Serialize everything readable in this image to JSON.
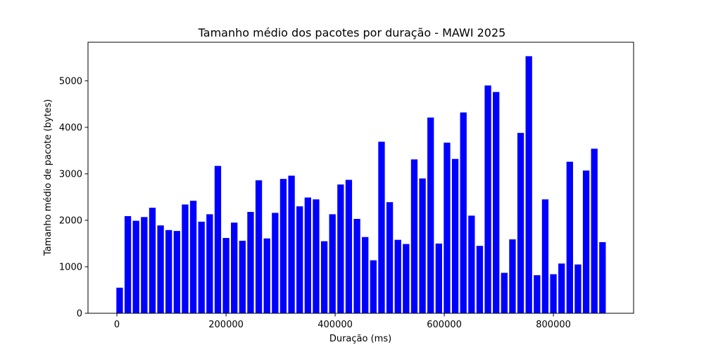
{
  "chart_data": {
    "type": "bar",
    "title": "Tamanho médio dos pacotes por duração - MAWI 2025",
    "xlabel": "Duração (ms)",
    "ylabel": "Tamanho médio de pacote (bytes)",
    "xlim": [
      -53000,
      947000
    ],
    "ylim": [
      0,
      5830
    ],
    "xticks": [
      0,
      200000,
      400000,
      600000,
      800000
    ],
    "yticks": [
      0,
      1000,
      2000,
      3000,
      4000,
      5000
    ],
    "bar_color": "#0000ff",
    "bar_width": 12000,
    "grid": false,
    "x": [
      5000,
      20000,
      35000,
      50000,
      65000,
      80000,
      95000,
      110000,
      125000,
      140000,
      155000,
      170000,
      185000,
      200000,
      215000,
      230000,
      245000,
      260000,
      275000,
      290000,
      305000,
      320000,
      335000,
      350000,
      365000,
      380000,
      395000,
      410000,
      425000,
      440000,
      455000,
      470000,
      485000,
      500000,
      515000,
      530000,
      545000,
      560000,
      575000,
      590000,
      605000,
      620000,
      635000,
      650000,
      665000,
      680000,
      695000,
      710000,
      725000,
      740000,
      755000,
      770000,
      785000,
      800000,
      815000,
      830000,
      845000,
      860000,
      875000,
      890000
    ],
    "values": [
      550,
      2090,
      1990,
      2070,
      2270,
      1890,
      1790,
      1770,
      2340,
      2420,
      1970,
      2130,
      3170,
      1620,
      1950,
      1560,
      2180,
      2860,
      1610,
      2160,
      2890,
      2960,
      2300,
      2490,
      2450,
      1550,
      2130,
      2770,
      2870,
      2030,
      1640,
      1140,
      3690,
      2390,
      1580,
      1490,
      3310,
      2900,
      4210,
      1500,
      3670,
      3320,
      4320,
      2100,
      1450,
      4900,
      4760,
      870,
      1590,
      3880,
      5530,
      820,
      2450,
      840,
      1070,
      3260,
      1050,
      3070,
      3540,
      1530
    ]
  }
}
